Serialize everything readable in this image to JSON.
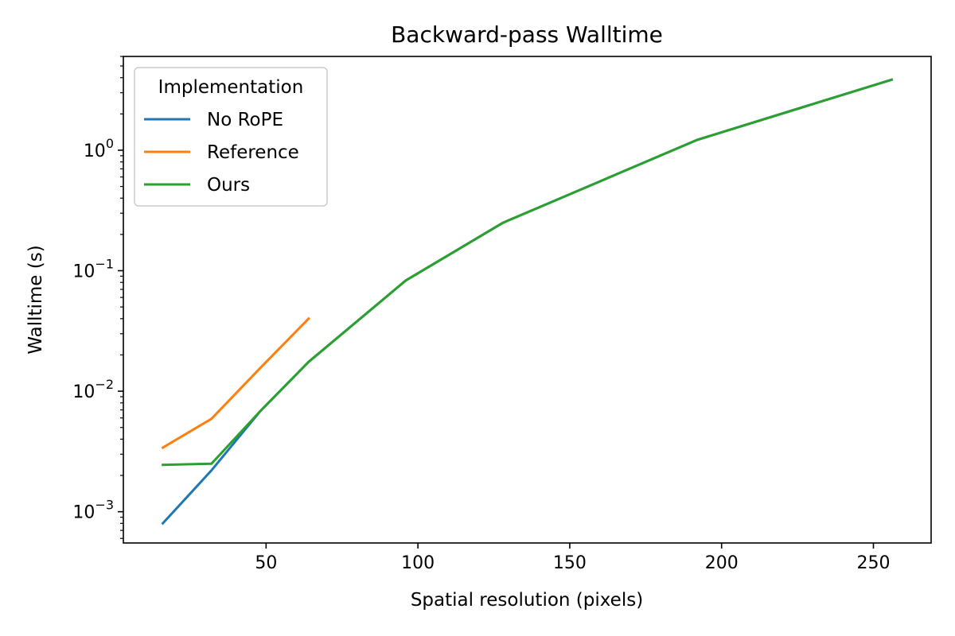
{
  "chart_data": {
    "type": "line",
    "title": "Backward-pass Walltime",
    "xlabel": "Spatial resolution (pixels)",
    "ylabel": "Walltime (s)",
    "xlim": [
      3,
      269
    ],
    "ylim": [
      0.00055,
      6.0
    ],
    "yscale": "log",
    "x_ticks": [
      50,
      100,
      150,
      200,
      250
    ],
    "y_ticks": [
      {
        "value": 0.001,
        "base": "10",
        "exp": "−3"
      },
      {
        "value": 0.01,
        "base": "10",
        "exp": "−2"
      },
      {
        "value": 0.1,
        "base": "10",
        "exp": "−1"
      },
      {
        "value": 1,
        "base": "10",
        "exp": "0"
      }
    ],
    "grid": false,
    "legend": {
      "title": "Implementation",
      "placement": "top-left"
    },
    "series": [
      {
        "name": "No RoPE",
        "color": "#1f77b4",
        "x": [
          16,
          32,
          48,
          64,
          96,
          128,
          192,
          256
        ],
        "y": [
          0.0008,
          0.0022,
          0.0068,
          0.0175,
          0.083,
          0.25,
          1.22,
          3.85
        ]
      },
      {
        "name": "Reference",
        "color": "#ff7f0e",
        "x": [
          16,
          32,
          48,
          64
        ],
        "y": [
          0.0034,
          0.0059,
          0.0155,
          0.04
        ]
      },
      {
        "name": "Ours",
        "color": "#2ca02c",
        "x": [
          16,
          32,
          48,
          64,
          96,
          128,
          192,
          256
        ],
        "y": [
          0.00245,
          0.0025,
          0.0068,
          0.0175,
          0.083,
          0.25,
          1.22,
          3.85
        ]
      }
    ]
  }
}
